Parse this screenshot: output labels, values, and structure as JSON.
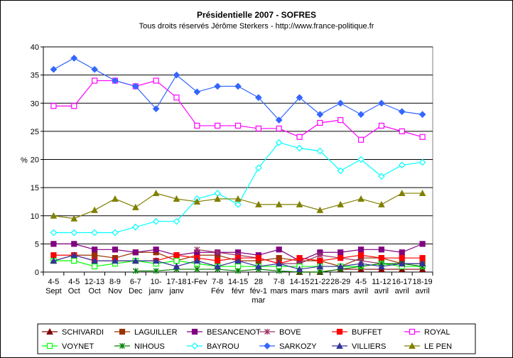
{
  "chart_data": {
    "type": "line",
    "title": "Présidentielle 2007 - SOFRES",
    "subtitle": "Tous droits réservés Jérôme Sterkers - http://www.france-politique.fr",
    "xlabel": "",
    "ylabel": "%",
    "ylim": [
      0,
      40
    ],
    "yticks": [
      0,
      5,
      10,
      15,
      20,
      25,
      30,
      35,
      40
    ],
    "grid": true,
    "legend_position": "bottom",
    "categories": [
      [
        "4-5",
        "Sept"
      ],
      [
        "4-5",
        "Oct"
      ],
      [
        "12-13",
        "Oct"
      ],
      [
        "8-9",
        "Nov"
      ],
      [
        "6-7",
        "Dec"
      ],
      [
        "10-",
        "janv"
      ],
      [
        "17-18",
        "janv"
      ],
      [
        "1-Fev"
      ],
      [
        "7-8",
        "Fév"
      ],
      [
        "14-15",
        "févr"
      ],
      [
        "28",
        "fév-1",
        "mar"
      ],
      [
        "7-8",
        "mars"
      ],
      [
        "14-15",
        "mars"
      ],
      [
        "21-22",
        "mars"
      ],
      [
        "28-29",
        "mars"
      ],
      [
        "4-5",
        "avril"
      ],
      [
        "11-12",
        "avril"
      ],
      [
        "16-17",
        "avril"
      ],
      [
        "18-19",
        "avril"
      ]
    ],
    "series": [
      {
        "name": "SCHIVARDI",
        "color": "#800000",
        "marker": "triangle",
        "filled": true,
        "values": [
          null,
          null,
          null,
          null,
          null,
          null,
          null,
          null,
          null,
          null,
          null,
          null,
          0,
          0,
          0.5,
          0.5,
          0.5,
          0.5,
          0.5
        ]
      },
      {
        "name": "LAGUILLER",
        "color": "#993300",
        "marker": "square",
        "filled": true,
        "values": [
          2,
          3,
          3,
          2.5,
          3.5,
          3.5,
          2,
          3,
          3,
          2,
          2,
          2.5,
          2,
          2,
          1,
          2.5,
          2.5,
          1.5,
          1.5
        ]
      },
      {
        "name": "BESANCENOT",
        "color": "#800080",
        "marker": "square",
        "filled": true,
        "values": [
          5,
          5,
          4,
          4,
          3.5,
          4,
          3,
          3.5,
          3.5,
          3.5,
          3,
          4,
          2,
          3.5,
          3.5,
          4,
          4,
          3.5,
          5
        ]
      },
      {
        "name": "BOVE",
        "color": "#993366",
        "marker": "star",
        "filled": true,
        "values": [
          null,
          null,
          null,
          null,
          null,
          null,
          null,
          4,
          3.5,
          3,
          2.5,
          1.5,
          1.5,
          3,
          2.5,
          2,
          1.5,
          1.5,
          1.5
        ]
      },
      {
        "name": "BUFFET",
        "color": "#ff0000",
        "marker": "square",
        "filled": true,
        "values": [
          3,
          3,
          2,
          2,
          2,
          2,
          3,
          2.5,
          2,
          2.5,
          2.5,
          1.5,
          2.5,
          2,
          2.5,
          3,
          2.5,
          2.5,
          2.5
        ]
      },
      {
        "name": "ROYAL",
        "color": "#ff00ff",
        "marker": "square",
        "filled": false,
        "values": [
          29.5,
          29.5,
          34,
          34,
          33,
          34,
          31,
          26,
          26,
          26,
          25.5,
          25.5,
          24,
          26.5,
          27,
          23.5,
          26,
          25,
          24
        ]
      },
      {
        "name": "VOYNET",
        "color": "#00ff00",
        "marker": "square",
        "filled": false,
        "values": [
          2,
          2,
          1,
          1.5,
          2,
          1.5,
          2,
          1.5,
          1,
          1,
          1,
          1,
          1,
          1,
          1,
          1,
          1.5,
          1,
          1
        ]
      },
      {
        "name": "NIHOUS",
        "color": "#008000",
        "marker": "star",
        "filled": true,
        "values": [
          null,
          null,
          null,
          null,
          0.2,
          0.2,
          0.5,
          0.5,
          0.5,
          0.2,
          0.5,
          0.2,
          0,
          0,
          0.5,
          1,
          1.5,
          1.5,
          1
        ]
      },
      {
        "name": "BAYROU",
        "color": "#00ffff",
        "marker": "diamond",
        "filled": false,
        "values": [
          7,
          7,
          7,
          7,
          8,
          9,
          9,
          13,
          14,
          12,
          18.5,
          23,
          22,
          21.5,
          18,
          20,
          17,
          19,
          19.5
        ]
      },
      {
        "name": "SARKOZY",
        "color": "#3366ff",
        "marker": "diamond",
        "filled": true,
        "values": [
          36,
          38,
          36,
          34,
          33,
          29,
          35,
          32,
          33,
          33,
          31,
          27,
          31,
          28,
          30,
          28,
          30,
          28.5,
          28
        ]
      },
      {
        "name": "VILLIERS",
        "color": "#333399",
        "marker": "triangle",
        "filled": true,
        "values": [
          2,
          3,
          2,
          2,
          2,
          2,
          1,
          2,
          1,
          2,
          1,
          1.5,
          0.5,
          1,
          1,
          1.5,
          1,
          1.5,
          1.5
        ]
      },
      {
        "name": "LE PEN",
        "color": "#808000",
        "marker": "triangle",
        "filled": true,
        "values": [
          10,
          9.5,
          11,
          13,
          11.5,
          14,
          13,
          12.5,
          13,
          13,
          12,
          12,
          12,
          11,
          12,
          13,
          12,
          14,
          14
        ]
      }
    ]
  }
}
